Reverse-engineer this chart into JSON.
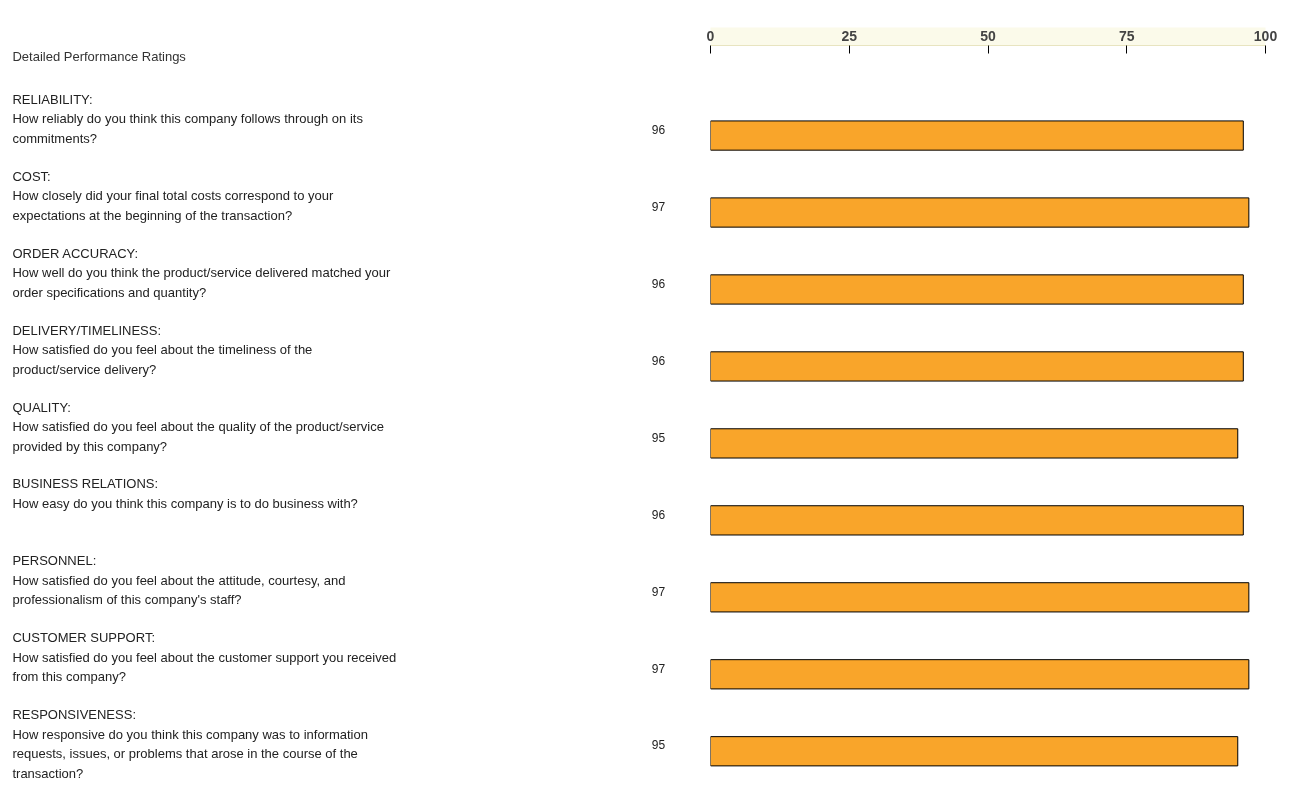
{
  "chart_data": {
    "type": "bar",
    "orientation": "horizontal",
    "title": "Detailed Performance Ratings",
    "categories": [
      "RELIABILITY:\nHow reliably do you think this company follows through on its commitments?",
      "COST:\nHow closely did your final total costs correspond to your expectations at the beginning of the transaction?",
      "ORDER ACCURACY:\nHow well do you think the product/service delivered matched your order specifications and quantity?",
      "DELIVERY/TIMELINESS:\nHow satisfied do you feel about the timeliness of the product/service delivery?",
      "QUALITY:\nHow satisfied do you feel about the quality of the product/service provided by this company?",
      "BUSINESS RELATIONS:\nHow easy do you think this company is to do business with?",
      "PERSONNEL:\nHow satisfied do you feel about the attitude, courtesy, and professionalism of this company's staff?",
      "CUSTOMER SUPPORT:\nHow satisfied do you feel about the customer support you received from this company?",
      "RESPONSIVENESS:\nHow responsive do you think this company was to information requests, issues, or problems that arose in the course of the transaction?"
    ],
    "values": [
      96,
      97,
      96,
      96,
      95,
      96,
      97,
      97,
      95
    ],
    "color": "#f9a52a",
    "x2lim": [
      0,
      100
    ],
    "x2ticks": [
      0,
      25,
      50,
      75,
      100
    ],
    "data_labels": true,
    "grid": false
  }
}
